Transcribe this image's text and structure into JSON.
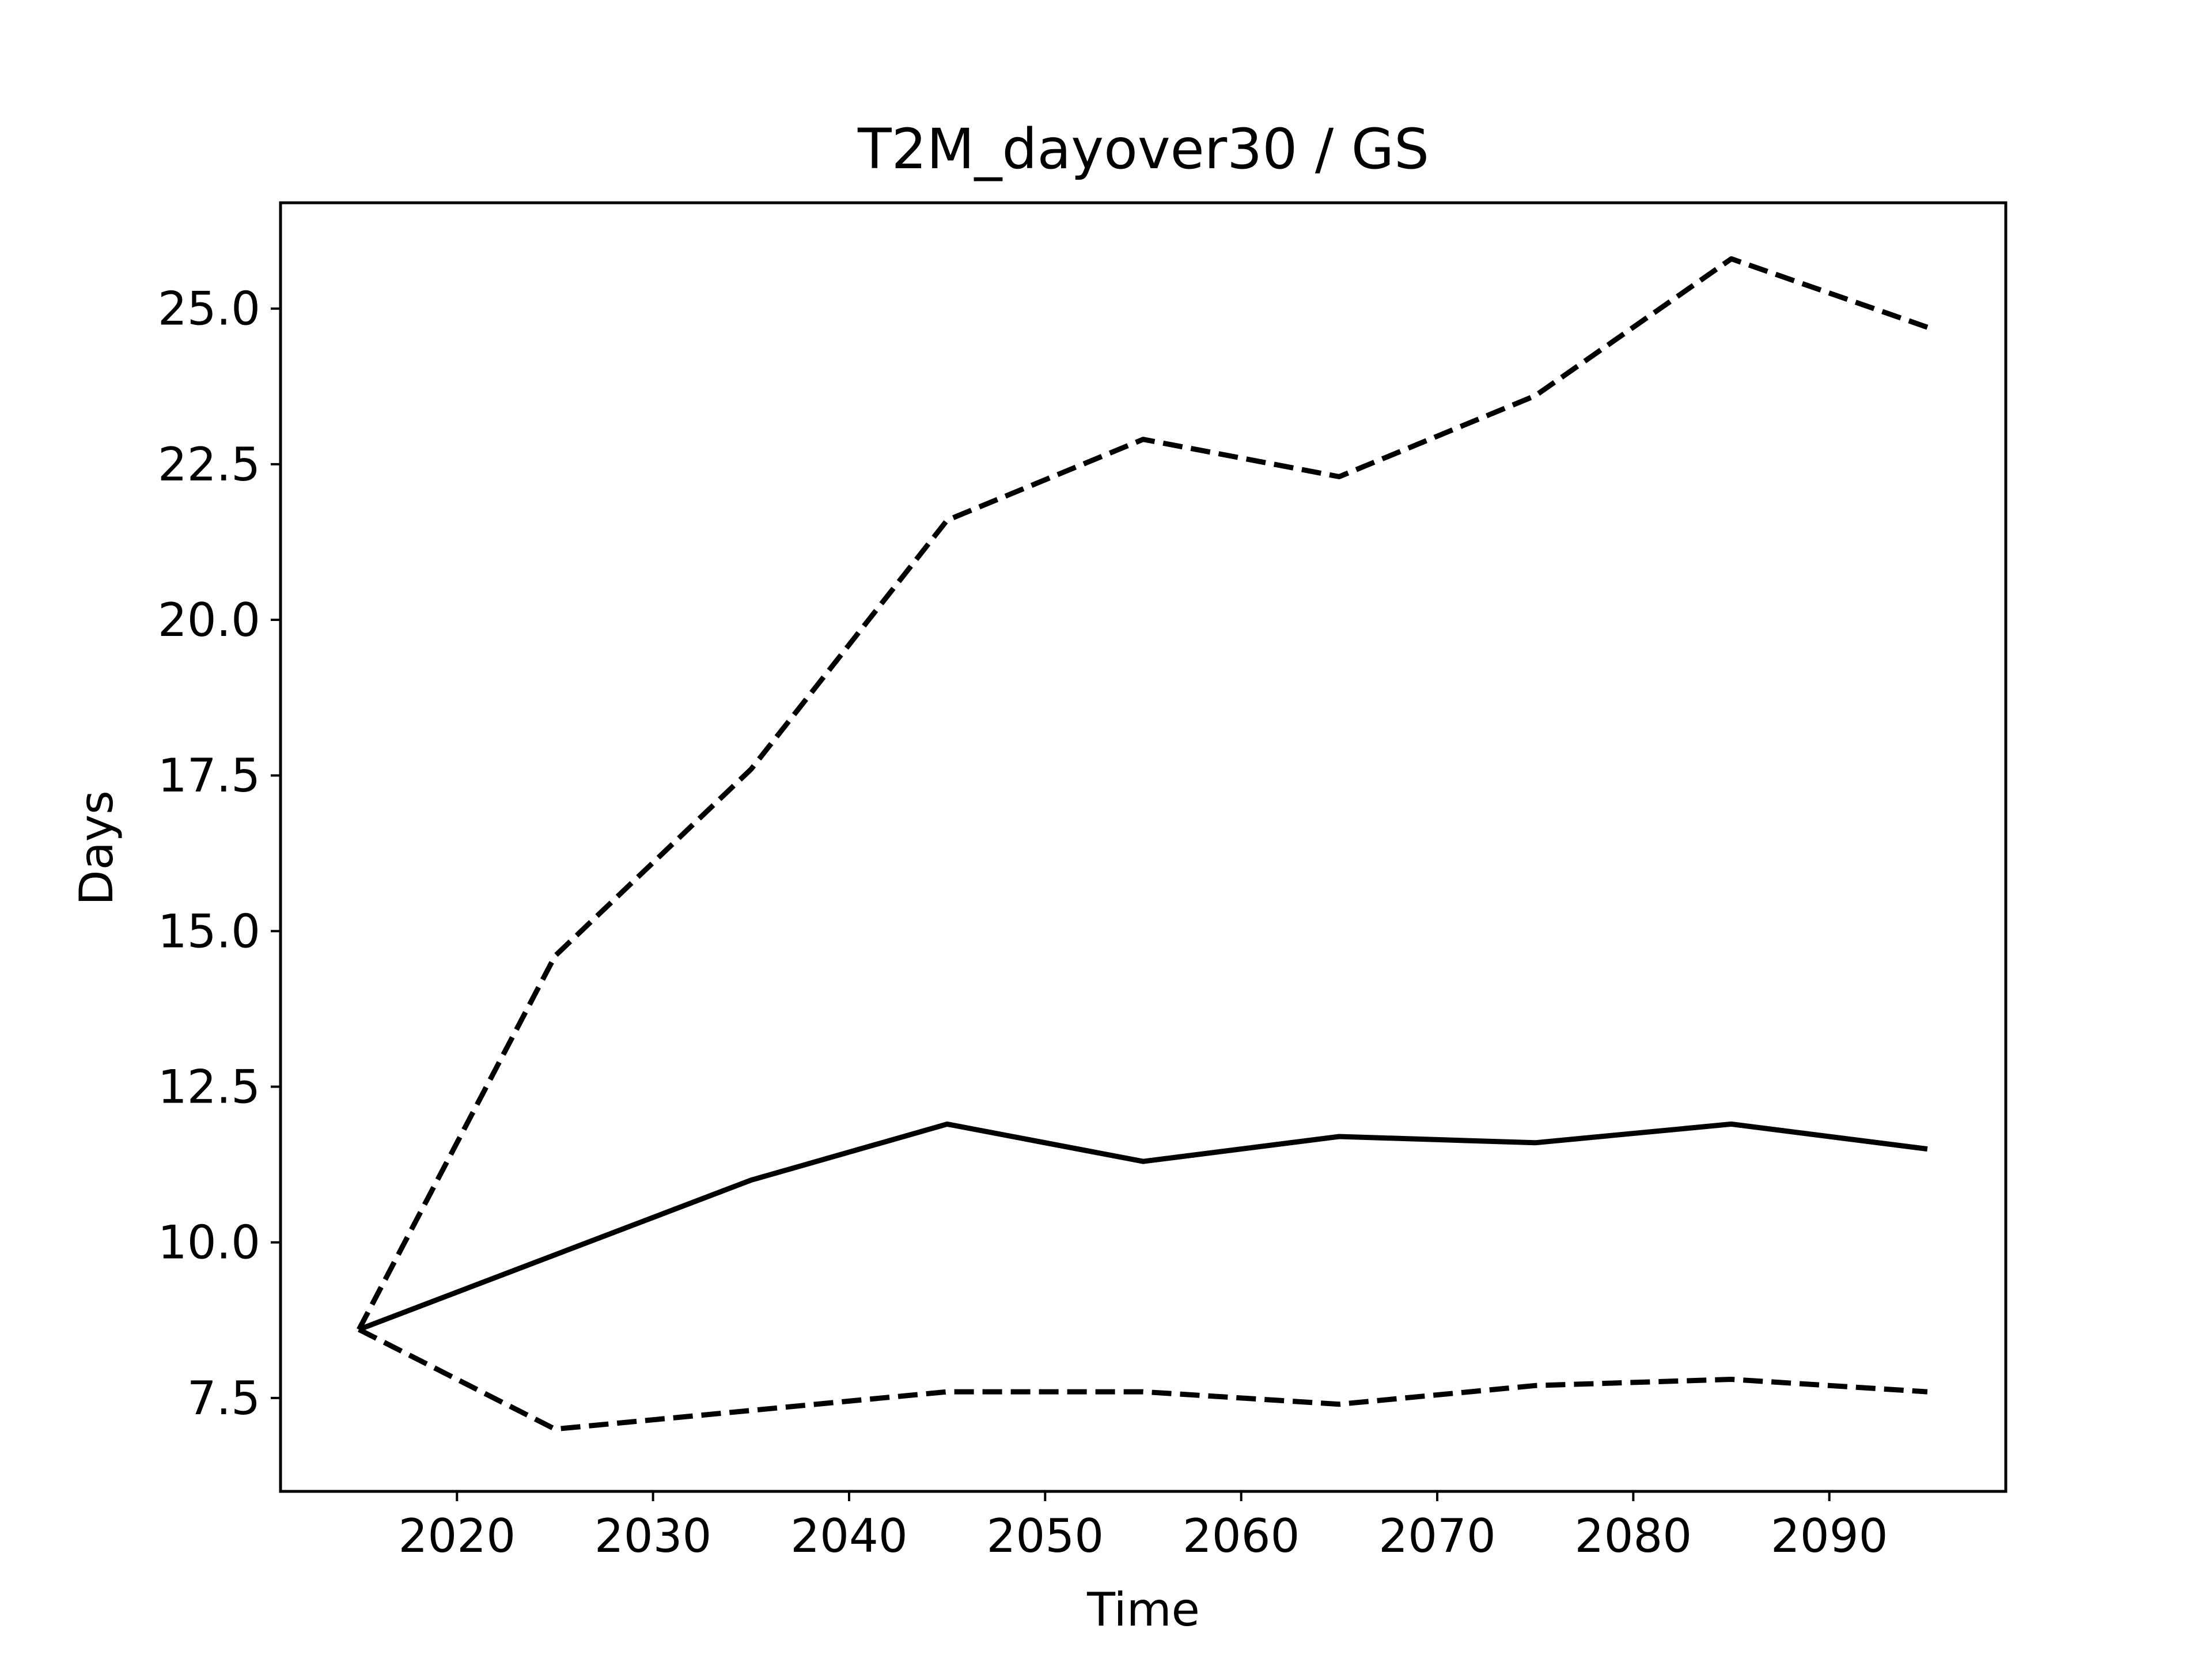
{
  "chart_data": {
    "type": "line",
    "title": "T2M_dayover30 / GS",
    "xlabel": "Time",
    "ylabel": "Days",
    "xlim": [
      2011,
      2099
    ],
    "ylim": [
      6.0,
      26.7
    ],
    "grid": false,
    "x_ticks": [
      2020,
      2030,
      2040,
      2050,
      2060,
      2070,
      2080,
      2090
    ],
    "y_ticks": [
      7.5,
      10.0,
      12.5,
      15.0,
      17.5,
      20.0,
      22.5,
      25.0
    ],
    "x_tick_labels": [
      "2020",
      "2030",
      "2040",
      "2050",
      "2060",
      "2070",
      "2080",
      "2090"
    ],
    "y_tick_labels": [
      "7.5",
      "10.0",
      "12.5",
      "15.0",
      "17.5",
      "20.0",
      "22.5",
      "25.0"
    ],
    "x": [
      2015,
      2025,
      2035,
      2045,
      2055,
      2065,
      2075,
      2085,
      2095
    ],
    "series": [
      {
        "style": "solid",
        "color": "#000000",
        "values": [
          8.6,
          9.8,
          11.0,
          11.9,
          11.3,
          11.7,
          11.6,
          11.9,
          11.5
        ]
      },
      {
        "style": "dashed",
        "color": "#000000",
        "values": [
          8.6,
          14.6,
          17.6,
          21.6,
          22.9,
          22.3,
          23.6,
          25.8,
          24.7
        ]
      },
      {
        "style": "dashed",
        "color": "#000000",
        "values": [
          8.6,
          7.0,
          7.3,
          7.6,
          7.6,
          7.4,
          7.7,
          7.8,
          7.6
        ]
      }
    ]
  }
}
